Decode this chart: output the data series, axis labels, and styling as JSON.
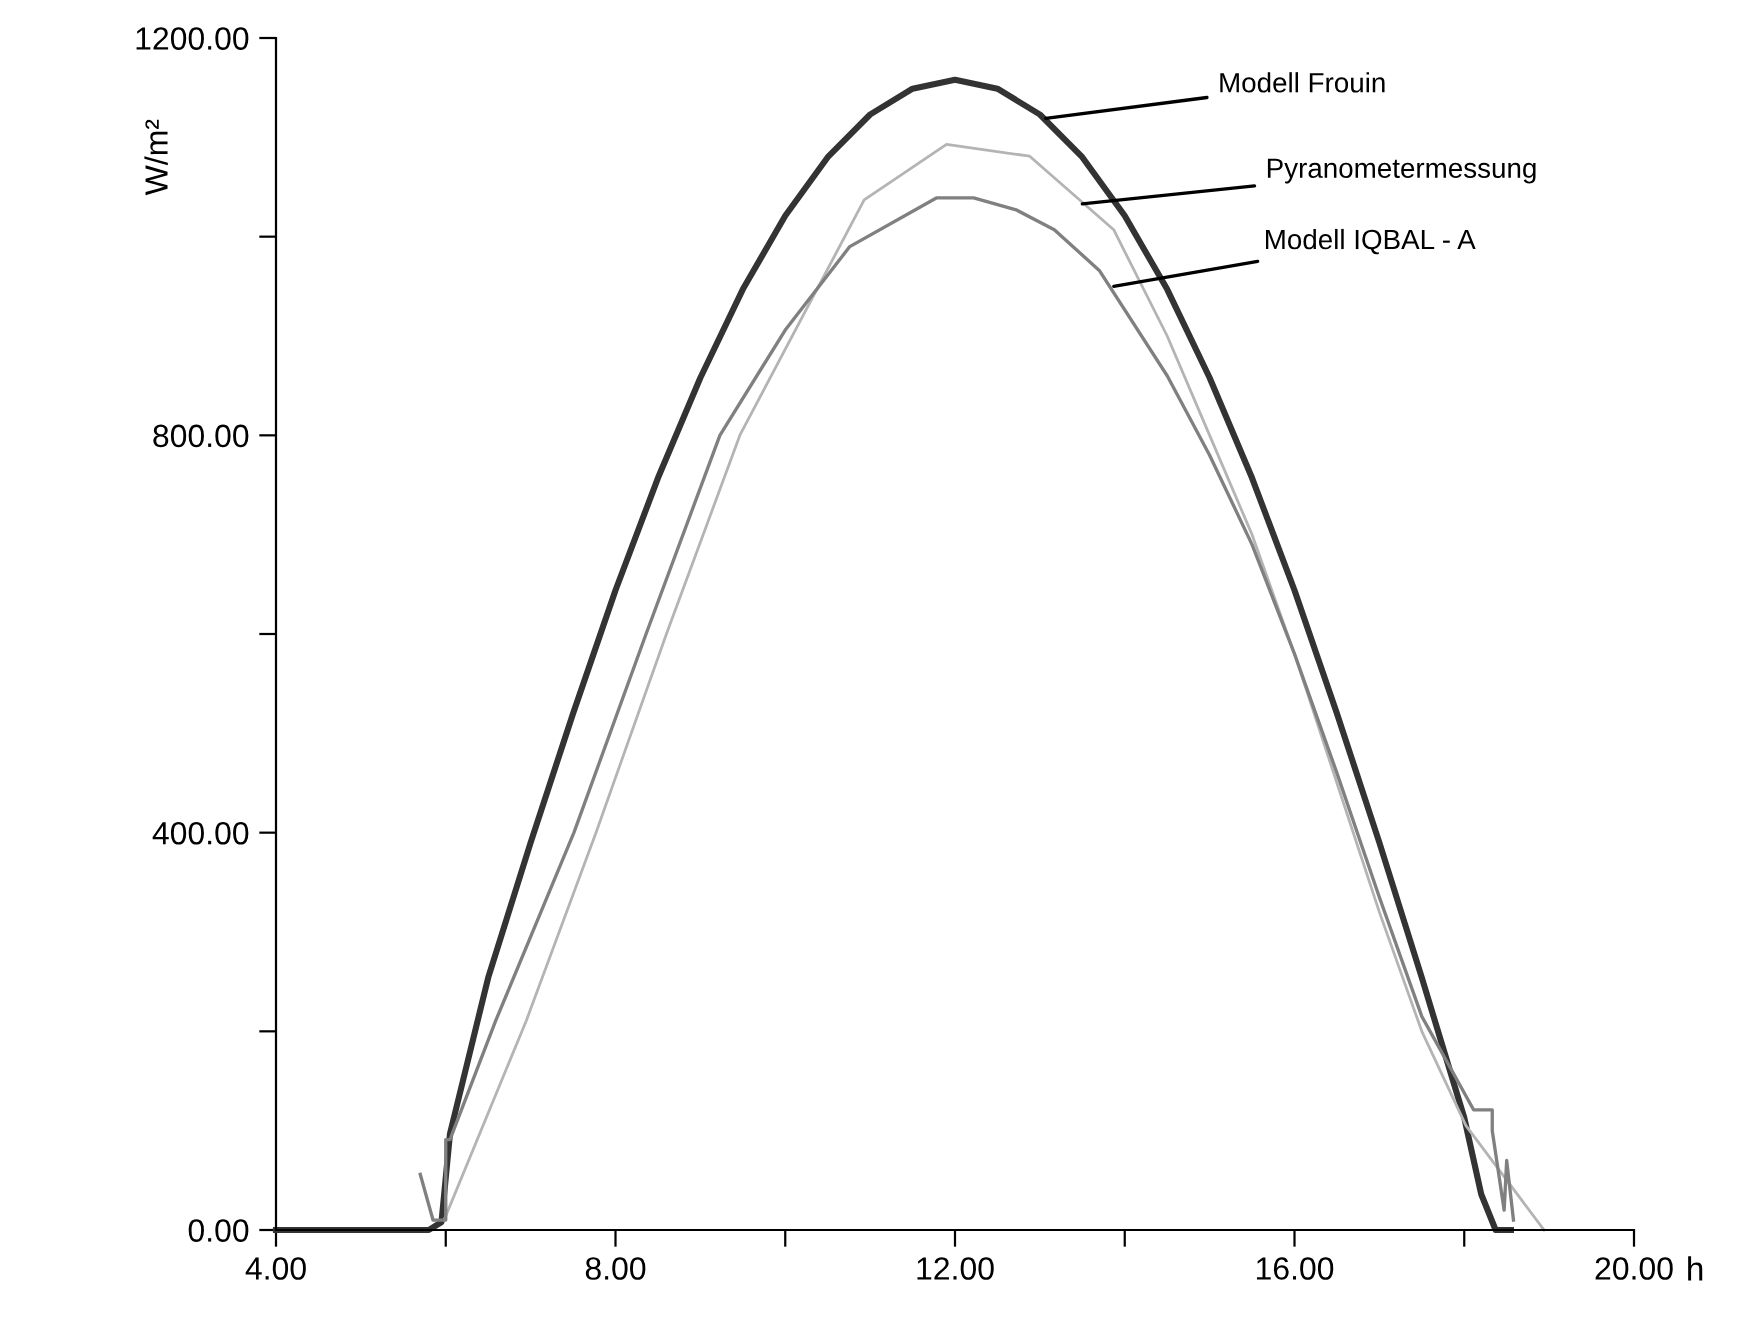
{
  "chart_data": {
    "type": "line",
    "xlabel": "h",
    "ylabel": "W/m²",
    "xlim": [
      4,
      20
    ],
    "xticks": [
      {
        "value": 4,
        "label": "4.00"
      },
      {
        "value": 6,
        "label": null
      },
      {
        "value": 8,
        "label": "8.00"
      },
      {
        "value": 10,
        "label": null
      },
      {
        "value": 12,
        "label": "12.00"
      },
      {
        "value": 14,
        "label": null
      },
      {
        "value": 16,
        "label": "16.00"
      },
      {
        "value": 18,
        "label": null
      },
      {
        "value": 20,
        "label": "20.00"
      }
    ],
    "ylim": [
      0,
      1200
    ],
    "yticks": [
      {
        "value": 0,
        "label": "0.00"
      },
      {
        "value": 200,
        "label": null
      },
      {
        "value": 400,
        "label": "400.00"
      },
      {
        "value": 600,
        "label": null
      },
      {
        "value": 800,
        "label": "800.00"
      },
      {
        "value": 1000,
        "label": null
      },
      {
        "value": 1200,
        "label": "1200.00"
      }
    ],
    "grid": false,
    "legend": false,
    "line_style": "solid",
    "marker": "none",
    "series": [
      {
        "color": "#333333",
        "x": [
          4,
          5.8,
          5.95,
          6.05,
          6.5,
          7,
          7.5,
          8,
          8.5,
          9,
          9.5,
          10,
          10.5,
          11,
          11.5,
          12,
          12.5,
          13,
          13.5,
          14,
          14.5,
          15,
          15.5,
          16,
          16.5,
          17,
          17.5,
          18,
          18.2,
          18.37,
          18.55
        ],
        "values": [
          0,
          0,
          8,
          97,
          254,
          390,
          520,
          644,
          757,
          858,
          947,
          1021,
          1080,
          1123,
          1149,
          1158,
          1149,
          1123,
          1080,
          1021,
          947,
          858,
          757,
          644,
          520,
          390,
          254,
          113,
          36,
          0,
          0
        ]
      },
      {
        "color": "#b4b4b4",
        "x": [
          5.98,
          6.95,
          7.77,
          8.6,
          9.47,
          10.93,
          11.9,
          12.88,
          13.87,
          14.5,
          15,
          15.5,
          16,
          16.5,
          17,
          17.5,
          18.02,
          18.94
        ],
        "values": [
          10,
          211,
          400,
          600,
          801,
          1037,
          1093,
          1081,
          1007,
          900,
          800,
          700,
          580,
          450,
          320,
          200,
          105,
          0
        ]
      },
      {
        "color": "#808080",
        "x": [
          5.7,
          5.85,
          6.0,
          6.0,
          6.05,
          6.59,
          7.51,
          8.36,
          9.23,
          10.0,
          10.76,
          11.78,
          12.22,
          12.72,
          13.17,
          13.7,
          14.5,
          15,
          15.5,
          16,
          16.5,
          17,
          17.5,
          18.11,
          18.33,
          18.33,
          18.47,
          18.5,
          18.58
        ],
        "values": [
          56,
          10,
          10,
          91,
          91,
          211,
          400,
          600,
          800,
          906,
          990,
          1039,
          1039,
          1027,
          1007,
          966,
          860,
          780,
          690,
          580,
          460,
          335,
          215,
          121,
          121,
          100,
          20,
          70,
          10
        ]
      }
    ],
    "annotations": [
      {
        "text": "Modell Frouin",
        "x": 13.07,
        "y": 1119
      },
      {
        "text": "Pyranometermessung",
        "x": 13.5,
        "y": 1033
      },
      {
        "text": "Modell IQBAL - A",
        "x": 13.87,
        "y": 950
      }
    ]
  }
}
